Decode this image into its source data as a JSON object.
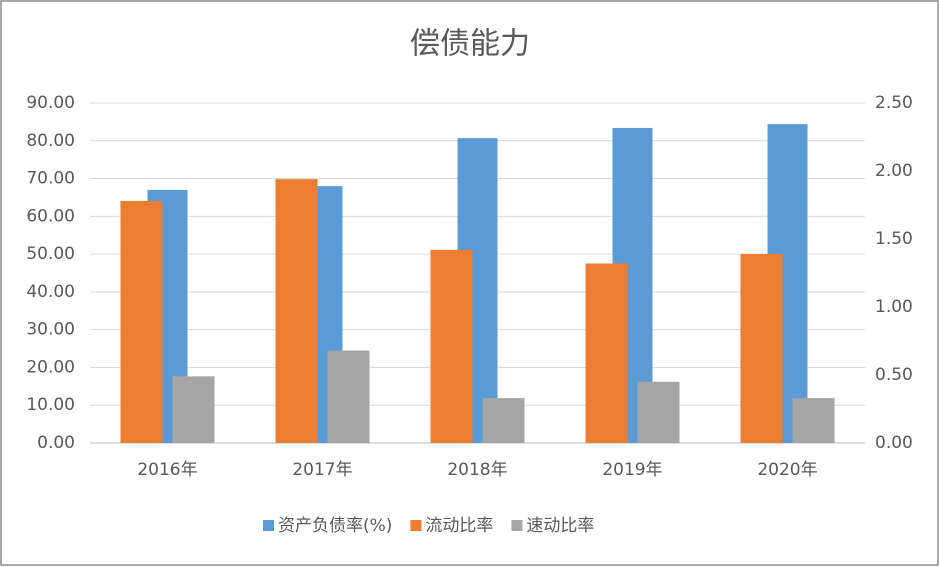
{
  "chart_data": {
    "type": "bar",
    "title": "偿债能力",
    "categories": [
      "2016年",
      "2017年",
      "2018年",
      "2019年",
      "2020年"
    ],
    "series": [
      {
        "name": "资产负债率(%)",
        "color": "#5b9bd5",
        "values": [
          67.0,
          68.0,
          80.7,
          83.4,
          84.4
        ]
      },
      {
        "name": "流动比率",
        "color": "#ed7d31",
        "axis": "y2",
        "values": [
          1.78,
          1.94,
          1.42,
          1.32,
          1.39
        ]
      },
      {
        "name": "速动比率",
        "color": "#a5a5a5",
        "axis": "y2",
        "values": [
          0.49,
          0.68,
          0.33,
          0.45,
          0.33
        ]
      }
    ],
    "ylim": [
      0,
      90
    ],
    "yticks": [
      {
        "value": 0,
        "label": "0.00"
      },
      {
        "value": 10,
        "label": "10.00"
      },
      {
        "value": 20,
        "label": "20.00"
      },
      {
        "value": 30,
        "label": "30.00"
      },
      {
        "value": 40,
        "label": "40.00"
      },
      {
        "value": 50,
        "label": "50.00"
      },
      {
        "value": 60,
        "label": "60.00"
      },
      {
        "value": 70,
        "label": "70.00"
      },
      {
        "value": 80,
        "label": "80.00"
      },
      {
        "value": 90,
        "label": "90.00"
      }
    ],
    "y2lim": [
      0,
      2.5
    ],
    "y2ticks": [
      {
        "value": 0,
        "label": "0.00"
      },
      {
        "value": 0.5,
        "label": "0.50"
      },
      {
        "value": 1,
        "label": "1.00"
      },
      {
        "value": 1.5,
        "label": "1.50"
      },
      {
        "value": 2,
        "label": "2.00"
      },
      {
        "value": 2.5,
        "label": "2.50"
      }
    ],
    "grid": true,
    "legend": "bottom"
  }
}
